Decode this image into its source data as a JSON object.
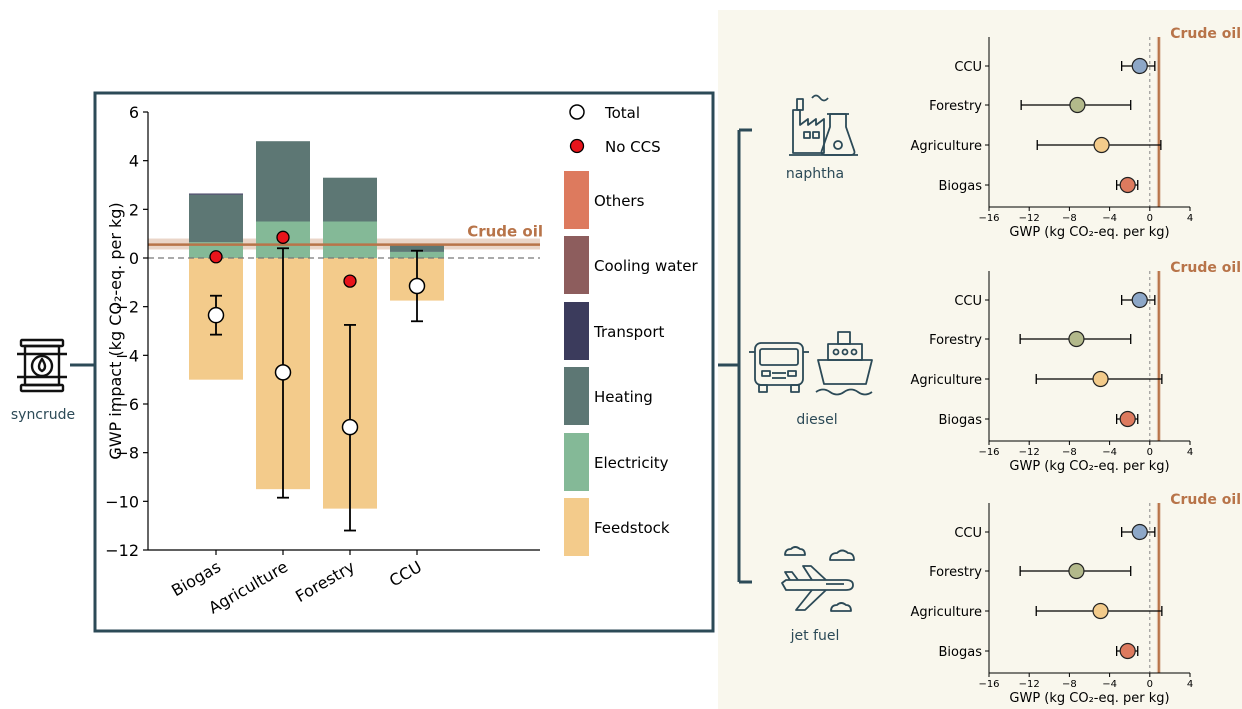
{
  "colors": {
    "others": "#dd7a5e",
    "cooling_water": "#8d5d5d",
    "transport": "#3b3b5c",
    "heating": "#5d7774",
    "electricity": "#84b997",
    "feedstock": "#f3cb8b",
    "crude_oil": "#b87449",
    "no_ccs": "#e8141b",
    "frame": "#2c4a57",
    "right_panel_bg": "#f9f7ed",
    "dot_ccu": "#8da7c7",
    "dot_forestry": "#b3b98b",
    "dot_agriculture": "#f3cb8b",
    "dot_biogas": "#dd7a5e"
  },
  "syncrude_label": "syncrude",
  "syncrude_icon": "oil-barrel-icon",
  "chart_data": [
    {
      "type": "bar",
      "stacked": true,
      "categories": [
        "Biogas",
        "Agriculture",
        "Forestry",
        "CCU"
      ],
      "ylabel": "GWP impact (kg CO₂-eq. per kg)",
      "ylim": [
        -12,
        6
      ],
      "yticks": [
        "6",
        "4",
        "2",
        "0",
        "−2",
        "−4",
        "−6",
        "−8",
        "−10",
        "−12"
      ],
      "ytick_values": [
        6,
        4,
        2,
        0,
        -2,
        -4,
        -6,
        -8,
        -10,
        -12
      ],
      "series": [
        {
          "name": "Feedstock",
          "values": [
            -5.0,
            -9.5,
            -10.3,
            -1.75
          ]
        },
        {
          "name": "Electricity",
          "values": [
            0.65,
            1.5,
            1.5,
            0.25
          ]
        },
        {
          "name": "Heating",
          "values": [
            1.95,
            3.3,
            1.8,
            0.33
          ]
        },
        {
          "name": "Transport",
          "values": [
            0.05,
            0,
            0,
            0
          ]
        },
        {
          "name": "Cooling water",
          "values": [
            0,
            0,
            0,
            0
          ]
        },
        {
          "name": "Others",
          "values": [
            0,
            0,
            0,
            0
          ]
        }
      ],
      "total": {
        "name": "Total",
        "values": [
          -2.35,
          -4.7,
          -6.95,
          -1.15
        ],
        "err_low": [
          -3.15,
          -9.85,
          -11.2,
          -2.6
        ],
        "err_high": [
          -1.55,
          0.4,
          -2.75,
          0.3
        ]
      },
      "no_ccs": {
        "name": "No CCS",
        "values": [
          0.05,
          0.85,
          -0.95,
          null
        ]
      },
      "reference": {
        "label": "Crude oil",
        "value": 0.55,
        "band": [
          0.35,
          0.8
        ]
      },
      "legend": {
        "placement": "right",
        "marker_entries": [
          "Total",
          "No CCS"
        ],
        "patch_entries": [
          "Others",
          "Cooling water",
          "Transport",
          "Heating",
          "Electricity",
          "Feedstock"
        ]
      }
    },
    {
      "type": "scatter",
      "product": "naphtha",
      "icon": "factory-flask-icon",
      "categories": [
        "CCU",
        "Forestry",
        "Agriculture",
        "Biogas"
      ],
      "values": [
        -1.0,
        -7.2,
        -4.8,
        -2.2
      ],
      "err_low": [
        -2.8,
        -12.8,
        -11.2,
        -3.3
      ],
      "err_high": [
        0.5,
        -1.9,
        1.1,
        -1.2
      ],
      "xlabel": "GWP (kg CO₂-eq. per kg)",
      "xlim": [
        -16,
        4
      ],
      "xticks": [
        "−16",
        "−12",
        "−8",
        "−4",
        "0",
        "4"
      ],
      "xtick_values": [
        -16,
        -12,
        -8,
        -4,
        0,
        4
      ],
      "reference": {
        "label": "Crude oil",
        "value": 0.9,
        "band": [
          0.7,
          1.1
        ]
      }
    },
    {
      "type": "scatter",
      "product": "diesel",
      "icon": "truck-ship-icon",
      "categories": [
        "CCU",
        "Forestry",
        "Agriculture",
        "Biogas"
      ],
      "values": [
        -1.0,
        -7.3,
        -4.9,
        -2.2
      ],
      "err_low": [
        -2.8,
        -12.9,
        -11.3,
        -3.3
      ],
      "err_high": [
        0.5,
        -1.9,
        1.2,
        -1.2
      ],
      "xlabel": "GWP (kg CO₂-eq. per kg)",
      "xlim": [
        -16,
        4
      ],
      "xticks": [
        "−16",
        "−12",
        "−8",
        "−4",
        "0",
        "4"
      ],
      "xtick_values": [
        -16,
        -12,
        -8,
        -4,
        0,
        4
      ],
      "reference": {
        "label": "Crude oil",
        "value": 0.9,
        "band": [
          0.7,
          1.1
        ]
      }
    },
    {
      "type": "scatter",
      "product": "jet fuel",
      "icon": "airplane-clouds-icon",
      "categories": [
        "CCU",
        "Forestry",
        "Agriculture",
        "Biogas"
      ],
      "values": [
        -1.0,
        -7.3,
        -4.9,
        -2.2
      ],
      "err_low": [
        -2.8,
        -12.9,
        -11.3,
        -3.3
      ],
      "err_high": [
        0.5,
        -1.9,
        1.2,
        -1.2
      ],
      "xlabel": "GWP (kg CO₂-eq. per kg)",
      "xlim": [
        -16,
        4
      ],
      "xticks": [
        "−16",
        "−12",
        "−8",
        "−4",
        "0",
        "4"
      ],
      "xtick_values": [
        -16,
        -12,
        -8,
        -4,
        0,
        4
      ],
      "reference": {
        "label": "Crude oil",
        "value": 0.9,
        "band": [
          0.7,
          1.1
        ]
      }
    }
  ]
}
